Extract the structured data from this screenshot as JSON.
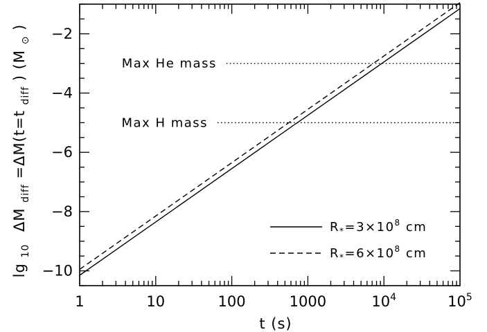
{
  "chart_data": {
    "type": "line",
    "xscale": "log",
    "xlim": [
      1,
      100000
    ],
    "ylim": [
      -10.5,
      -1
    ],
    "xlabel": "t (s)",
    "ylabel": {
      "prefix": "lg",
      "prefix_sub": "10",
      "part1": "ΔM",
      "part1_sub": "diff",
      "part2": "=ΔM(t=t",
      "part2_sub": "diff",
      "part3": ")  (M",
      "part3_sub": "⊙",
      "part4": ")"
    },
    "xticks": [
      {
        "value": 1,
        "base": "1",
        "exp": ""
      },
      {
        "value": 10,
        "base": "10",
        "exp": ""
      },
      {
        "value": 100,
        "base": "100",
        "exp": ""
      },
      {
        "value": 1000,
        "base": "1000",
        "exp": ""
      },
      {
        "value": 10000,
        "base": "10",
        "exp": "4"
      },
      {
        "value": 100000,
        "base": "10",
        "exp": "5"
      }
    ],
    "yticks": [
      {
        "value": -10,
        "label": "−10"
      },
      {
        "value": -8,
        "label": "−8"
      },
      {
        "value": -6,
        "label": "−6"
      },
      {
        "value": -4,
        "label": "−4"
      },
      {
        "value": -2,
        "label": "−2"
      }
    ],
    "series": [
      {
        "name": {
          "pre": "R",
          "sub": "*",
          "mid": "=3×10",
          "sup": "8",
          "post": " cm"
        },
        "style": "solid",
        "color": "#000000",
        "x": [
          1,
          100000
        ],
        "y": [
          -10.15,
          -1.15
        ]
      },
      {
        "name": {
          "pre": "R",
          "sub": "*",
          "mid": "=6×10",
          "sup": "8",
          "post": " cm"
        },
        "style": "dashed",
        "color": "#000000",
        "x": [
          1,
          100000
        ],
        "y": [
          -9.95,
          -0.95
        ]
      }
    ],
    "annotations": [
      {
        "label": "Max He mass",
        "y": -3,
        "x_start": 85,
        "x_end": 100000,
        "style": "dotted"
      },
      {
        "label": "Max H mass",
        "y": -5,
        "x_start": 65,
        "x_end": 100000,
        "style": "dotted"
      }
    ],
    "legend_position": "bottom-right",
    "grid": false
  }
}
